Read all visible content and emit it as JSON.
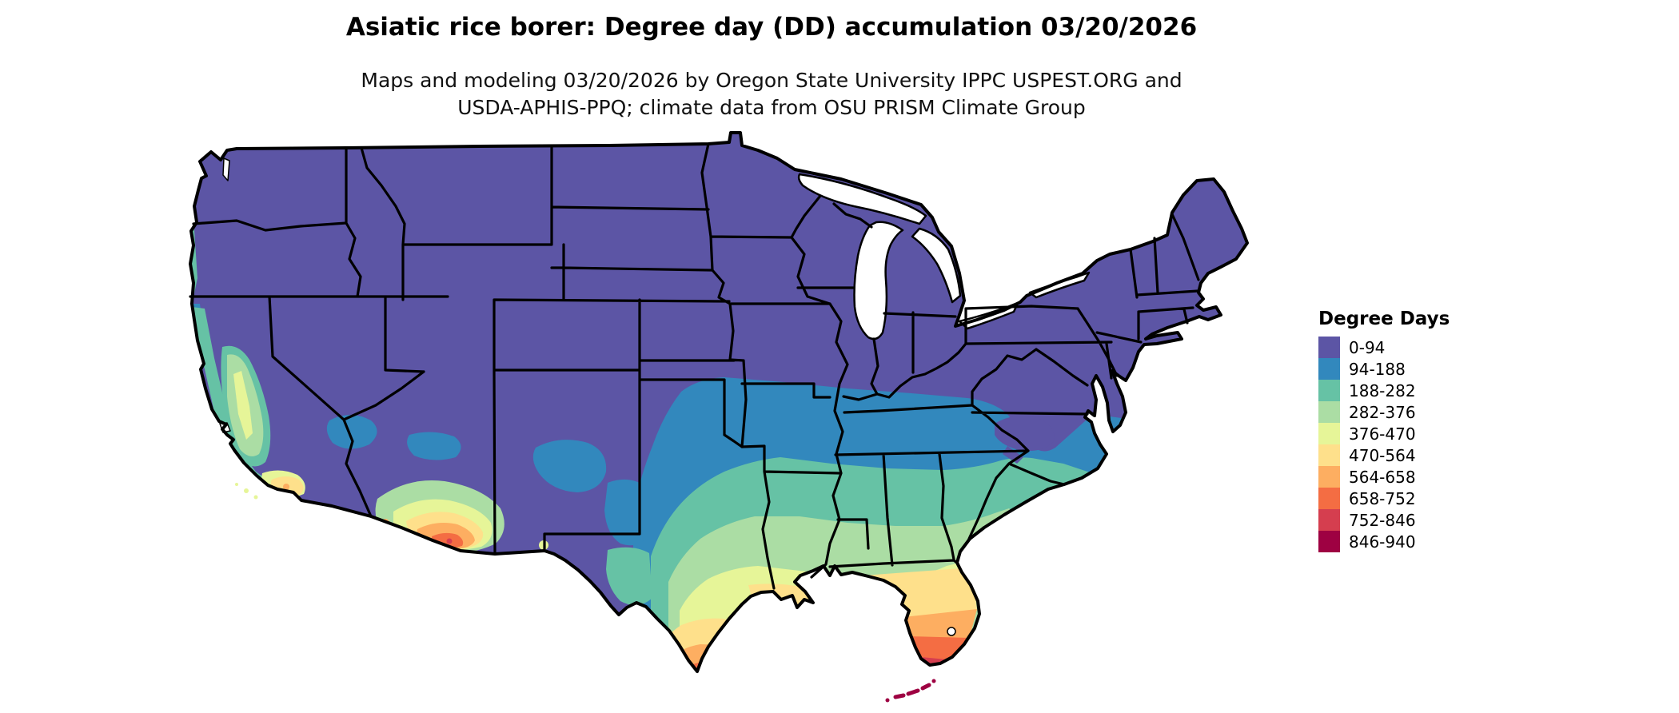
{
  "title": "Asiatic rice borer: Degree day (DD) accumulation 03/20/2026",
  "subtitle_line1": "Maps and modeling 03/20/2026 by Oregon State University IPPC USPEST.ORG and",
  "subtitle_line2": "USDA-APHIS-PPQ; climate data from OSU PRISM Climate Group",
  "legend": {
    "title": "Degree Days",
    "items": [
      {
        "label": "0-94",
        "color": "#5c55a5"
      },
      {
        "label": "94-188",
        "color": "#3288bd"
      },
      {
        "label": "188-282",
        "color": "#66c2a5"
      },
      {
        "label": "282-376",
        "color": "#abdda4"
      },
      {
        "label": "376-470",
        "color": "#e6f598"
      },
      {
        "label": "470-564",
        "color": "#fee08b"
      },
      {
        "label": "564-658",
        "color": "#fdae61"
      },
      {
        "label": "658-752",
        "color": "#f46d43"
      },
      {
        "label": "752-846",
        "color": "#d53e4f"
      },
      {
        "label": "846-940",
        "color": "#9e0142"
      }
    ]
  },
  "map": {
    "region": "Conterminous United States",
    "variable": "Degree day (DD) accumulation",
    "date_shown": "03/20/2026",
    "water_color": "#ffffff",
    "border_color": "#000000"
  }
}
